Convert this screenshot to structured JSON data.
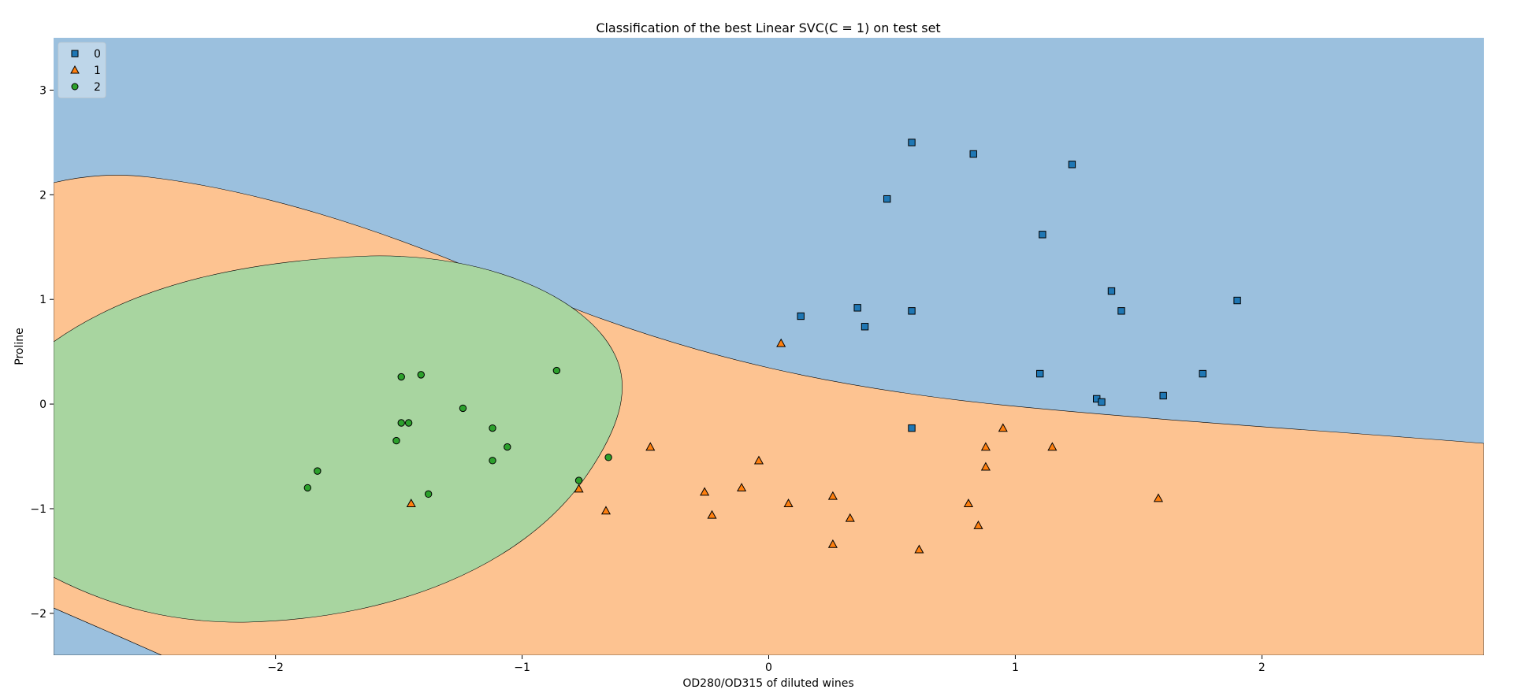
{
  "chart_data": {
    "type": "scatter",
    "title": "Classification of the best Linear SVC(C = 1) on test set",
    "xlabel": "OD280/OD315 of diluted wines",
    "ylabel": "Proline",
    "xlim": [
      -2.9,
      2.9
    ],
    "ylim": [
      -2.4,
      3.5
    ],
    "xticks": [
      -2,
      -1,
      0,
      1,
      2
    ],
    "yticks": [
      -2,
      -1,
      0,
      1,
      2,
      3
    ],
    "grid": false,
    "legend_position": "top-left",
    "region_colors": {
      "0": "#9bc0de",
      "1": "#fdc391",
      "2": "#a8d5a0"
    },
    "series": [
      {
        "name": "0",
        "marker": "square",
        "color": "#1f77b4",
        "points": [
          [
            0.58,
            2.5
          ],
          [
            0.83,
            2.39
          ],
          [
            1.23,
            2.29
          ],
          [
            0.48,
            1.96
          ],
          [
            1.11,
            1.62
          ],
          [
            1.39,
            1.08
          ],
          [
            1.43,
            0.89
          ],
          [
            1.9,
            0.99
          ],
          [
            0.13,
            0.84
          ],
          [
            0.36,
            0.92
          ],
          [
            0.39,
            0.74
          ],
          [
            0.58,
            0.89
          ],
          [
            1.1,
            0.29
          ],
          [
            1.76,
            0.29
          ],
          [
            1.6,
            0.08
          ],
          [
            1.33,
            0.05
          ],
          [
            1.35,
            0.02
          ],
          [
            0.58,
            -0.23
          ]
        ]
      },
      {
        "name": "1",
        "marker": "triangle",
        "color": "#ff7f0e",
        "points": [
          [
            0.05,
            0.58
          ],
          [
            0.95,
            -0.23
          ],
          [
            0.88,
            -0.41
          ],
          [
            1.15,
            -0.41
          ],
          [
            -0.48,
            -0.41
          ],
          [
            -0.04,
            -0.54
          ],
          [
            0.88,
            -0.6
          ],
          [
            -0.77,
            -0.81
          ],
          [
            -0.26,
            -0.84
          ],
          [
            -0.11,
            -0.8
          ],
          [
            0.26,
            -0.88
          ],
          [
            0.08,
            -0.95
          ],
          [
            0.81,
            -0.95
          ],
          [
            1.58,
            -0.9
          ],
          [
            -1.45,
            -0.95
          ],
          [
            -0.66,
            -1.02
          ],
          [
            -0.23,
            -1.06
          ],
          [
            0.33,
            -1.09
          ],
          [
            0.85,
            -1.16
          ],
          [
            0.26,
            -1.34
          ],
          [
            0.61,
            -1.39
          ]
        ]
      },
      {
        "name": "2",
        "marker": "circle",
        "color": "#2ca02c",
        "points": [
          [
            -1.49,
            0.26
          ],
          [
            -1.41,
            0.28
          ],
          [
            -0.86,
            0.32
          ],
          [
            -1.24,
            -0.04
          ],
          [
            -1.49,
            -0.18
          ],
          [
            -1.46,
            -0.18
          ],
          [
            -1.12,
            -0.23
          ],
          [
            -1.51,
            -0.35
          ],
          [
            -1.06,
            -0.41
          ],
          [
            -0.65,
            -0.51
          ],
          [
            -1.12,
            -0.54
          ],
          [
            -1.83,
            -0.64
          ],
          [
            -0.77,
            -0.73
          ],
          [
            -1.87,
            -0.8
          ],
          [
            -1.38,
            -0.86
          ]
        ]
      }
    ]
  }
}
